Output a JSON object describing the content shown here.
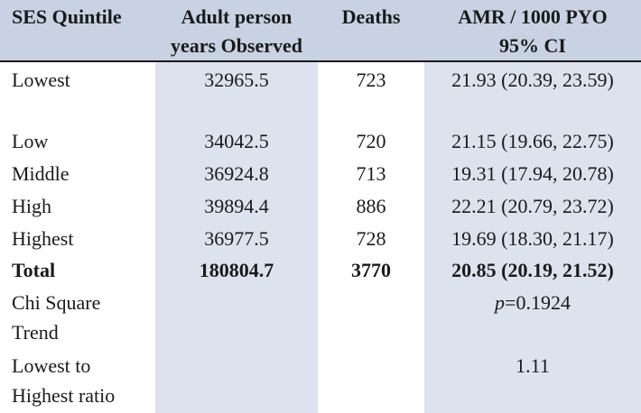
{
  "headers": {
    "ses": "SES Quintile",
    "pyo_line1": "Adult person",
    "pyo_line2": "years Observed",
    "deaths": "Deaths",
    "amr_line1": "AMR / 1000 PYO",
    "amr_line2": "95% CI"
  },
  "rows": [
    {
      "ses": "Lowest",
      "pyo": "32965.5",
      "deaths": "723",
      "amr": "21.93 (20.39, 23.59)"
    },
    {
      "ses": "Low",
      "pyo": "34042.5",
      "deaths": "720",
      "amr": "21.15 (19.66, 22.75)"
    },
    {
      "ses": "Middle",
      "pyo": "36924.8",
      "deaths": "713",
      "amr": "19.31 (17.94, 20.78)"
    },
    {
      "ses": "High",
      "pyo": "39894.4",
      "deaths": "886",
      "amr": "22.21 (20.79, 23.72)"
    },
    {
      "ses": "Highest",
      "pyo": "36977.5",
      "deaths": "728",
      "amr": "19.69 (18.30, 21.17)"
    }
  ],
  "total": {
    "ses": "Total",
    "pyo": "180804.7",
    "deaths": "3770",
    "amr": "20.85 (20.19, 21.52)"
  },
  "chi": {
    "label_line1": "Chi Square",
    "label_line2": "Trend",
    "p_symbol": "p",
    "p_value": "=0.1924"
  },
  "ratio": {
    "label_line1": "Lowest to",
    "label_line2": "Highest ratio",
    "value": "1.11"
  }
}
